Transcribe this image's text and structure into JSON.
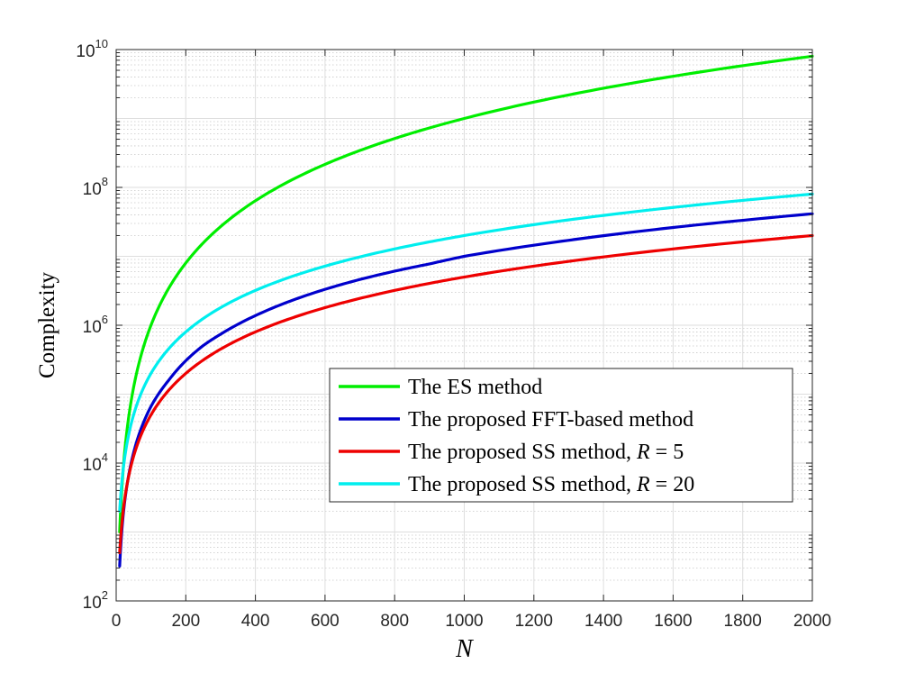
{
  "chart_data": {
    "type": "line",
    "xlabel": "N",
    "ylabel": "Complexity",
    "xlim": [
      0,
      2000
    ],
    "ylim": [
      100,
      10000000000
    ],
    "yscale": "log",
    "grid": true,
    "minor_grid": true,
    "legend_position": "lower-right-inside",
    "x_ticks": [
      {
        "value": 0,
        "label": "0"
      },
      {
        "value": 200,
        "label": "200"
      },
      {
        "value": 400,
        "label": "400"
      },
      {
        "value": 600,
        "label": "600"
      },
      {
        "value": 800,
        "label": "800"
      },
      {
        "value": 1000,
        "label": "1000"
      },
      {
        "value": 1200,
        "label": "1200"
      },
      {
        "value": 1400,
        "label": "1400"
      },
      {
        "value": 1600,
        "label": "1600"
      },
      {
        "value": 1800,
        "label": "1800"
      },
      {
        "value": 2000,
        "label": "2000"
      }
    ],
    "y_ticks": [
      {
        "value": 100,
        "base": "10",
        "exp": "2"
      },
      {
        "value": 10000,
        "base": "10",
        "exp": "4"
      },
      {
        "value": 1000000,
        "base": "10",
        "exp": "6"
      },
      {
        "value": 100000000,
        "base": "10",
        "exp": "8"
      },
      {
        "value": 10000000000,
        "base": "10",
        "exp": "10"
      }
    ],
    "x": [
      10,
      20,
      30,
      40,
      50,
      60,
      80,
      100,
      150,
      200,
      250,
      300,
      400,
      500,
      600,
      700,
      800,
      900,
      1000,
      1200,
      1400,
      1600,
      1800,
      2000
    ],
    "series": [
      {
        "name": "The ES method",
        "legend_prefix": "The ES method",
        "legend_var": "",
        "legend_suffix": "",
        "color": "#00ee00",
        "values": [
          1000,
          8000,
          27000,
          64000,
          125000,
          216000,
          512000,
          1000000,
          3375000,
          8000000,
          15625000,
          27000000,
          64000000,
          125000000,
          216000000,
          343000000,
          512000000,
          729000000,
          1000000000,
          1728000000,
          2744000000,
          4096000000,
          5832000000,
          8000000000
        ]
      },
      {
        "name": "The proposed FFT-based method",
        "legend_prefix": "The proposed FFT-based method",
        "legend_var": "",
        "legend_suffix": "",
        "color": "#0000cc",
        "values": [
          320,
          1730,
          4410,
          8500,
          14100,
          21300,
          40400,
          66400,
          157000,
          306000,
          507000,
          741000,
          1380000,
          2240000,
          3320000,
          4610000,
          6090000,
          7750000,
          10000000,
          14500000,
          19900000,
          26200000,
          33300000,
          41400000
        ]
      },
      {
        "name": "The proposed SS method, R = 5",
        "legend_prefix": "The proposed SS method, ",
        "legend_var": "R",
        "legend_suffix": " = 5",
        "color": "#ee0000",
        "values": [
          500,
          2000,
          4500,
          8000,
          12500,
          18000,
          32000,
          50000,
          112500,
          200000,
          312500,
          450000,
          800000,
          1250000,
          1800000,
          2450000,
          3200000,
          4050000,
          5000000,
          7200000,
          9800000,
          12800000,
          16200000,
          20000000
        ]
      },
      {
        "name": "The proposed SS method, R = 20",
        "legend_prefix": "The proposed SS method, ",
        "legend_var": "R",
        "legend_suffix": " = 20",
        "color": "#00eeee",
        "values": [
          2000,
          8000,
          18000,
          32000,
          50000,
          72000,
          128000,
          200000,
          450000,
          800000,
          1250000,
          1800000,
          3200000,
          5000000,
          7200000,
          9800000,
          12800000,
          16200000,
          20000000,
          28800000,
          39200000,
          51200000,
          64800000,
          80000000
        ]
      }
    ]
  }
}
